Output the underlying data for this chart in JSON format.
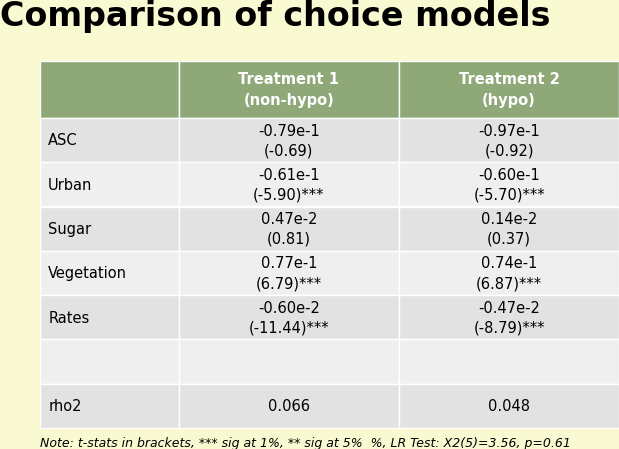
{
  "title": "Comparison of choice models",
  "background_color": "#FAFAD2",
  "header_bg_color": "#8FA878",
  "header_text_color": "#FFFFFF",
  "row_odd_bg": "#E2E2E2",
  "row_even_bg": "#EFEFEF",
  "col_headers": [
    "Treatment 1\n(non-hypo)",
    "Treatment 2\n(hypo)"
  ],
  "rows": [
    {
      "label": "ASC",
      "col1": "-0.79e-1\n(-0.69)",
      "col2": "-0.97e-1\n(-0.92)"
    },
    {
      "label": "Urban",
      "col1": "-0.61e-1\n(-5.90)***",
      "col2": "-0.60e-1\n(-5.70)***"
    },
    {
      "label": "Sugar",
      "col1": "0.47e-2\n(0.81)",
      "col2": "0.14e-2\n(0.37)"
    },
    {
      "label": "Vegetation",
      "col1": "0.77e-1\n(6.79)***",
      "col2": "0.74e-1\n(6.87)***"
    },
    {
      "label": "Rates",
      "col1": "-0.60e-2\n(-11.44)***",
      "col2": "-0.47e-2\n(-8.79)***"
    },
    {
      "label": "",
      "col1": "",
      "col2": ""
    },
    {
      "label": "rho2",
      "col1": "0.066",
      "col2": "0.048"
    }
  ],
  "note": "Note: t-stats in brackets, *** sig at 1%, ** sig at 5%  %, LR Test: X2(5)=3.56, p=0.61",
  "title_fontsize": 24,
  "header_fontsize": 10.5,
  "cell_fontsize": 10.5,
  "label_fontsize": 10.5,
  "note_fontsize": 9
}
